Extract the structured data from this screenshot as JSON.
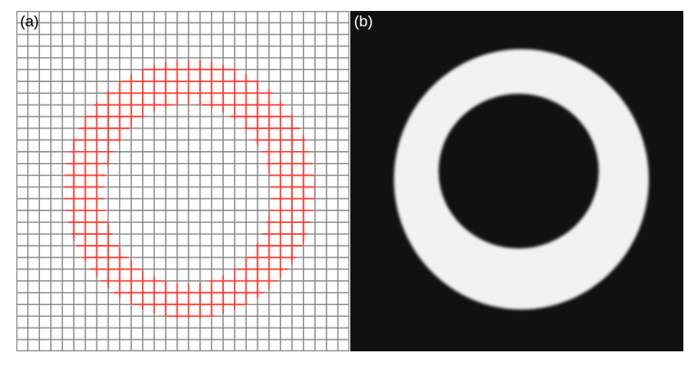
{
  "figure": {
    "panels": [
      {
        "label": "(a)",
        "grid_cells": 29,
        "grid_color": "#8c8c8c",
        "ring_color": "#ff3b30",
        "background": "#ffffff"
      },
      {
        "label": "(b)",
        "background": "#111111",
        "ring_color": "#f2f2f2"
      }
    ]
  }
}
